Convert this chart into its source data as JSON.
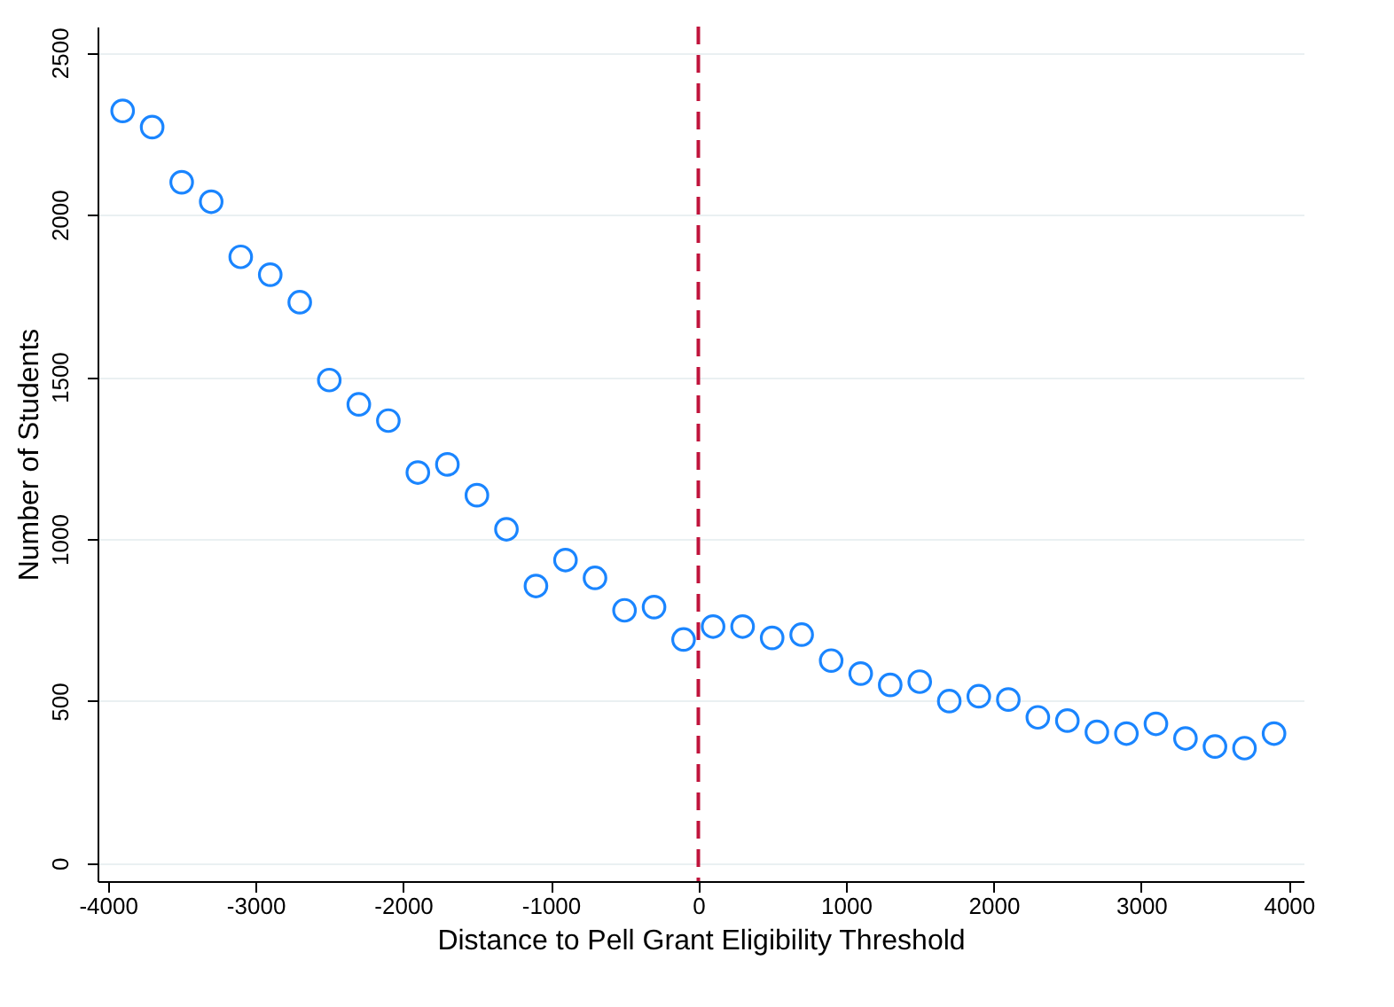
{
  "chart_data": {
    "type": "scatter",
    "xlabel": "Distance to Pell Grant Eligibility Threshold",
    "ylabel": "Number of Students",
    "x": [
      -3900,
      -3700,
      -3500,
      -3300,
      -3100,
      -2900,
      -2700,
      -2500,
      -2300,
      -2100,
      -1900,
      -1700,
      -1500,
      -1300,
      -1100,
      -900,
      -700,
      -500,
      -300,
      -100,
      100,
      300,
      500,
      700,
      900,
      1100,
      1300,
      1500,
      1700,
      1900,
      2100,
      2300,
      2500,
      2700,
      2900,
      3100,
      3300,
      3500,
      3700,
      3900
    ],
    "series": [
      {
        "color": "#1a85ff",
        "values": [
          2320,
          2270,
          2100,
          2040,
          1870,
          1815,
          1730,
          1490,
          1415,
          1365,
          1205,
          1230,
          1135,
          1030,
          855,
          935,
          880,
          780,
          790,
          690,
          730,
          730,
          695,
          705,
          625,
          585,
          550,
          560,
          500,
          515,
          505,
          450,
          440,
          405,
          400,
          430,
          385,
          360,
          355,
          400
        ]
      }
    ],
    "xlim": [
      -4070,
      4100
    ],
    "ylim": [
      -55,
      2580
    ],
    "xticks": [
      -4000,
      -3000,
      -2000,
      -1000,
      0,
      1000,
      2000,
      3000,
      4000
    ],
    "yticks": [
      0,
      500,
      1000,
      1500,
      2000,
      2500
    ],
    "grid": "y",
    "marker": "circle",
    "ref_lines": [
      {
        "axis": "x",
        "value": 0,
        "color": "#c0143c",
        "line_style": "dashed"
      }
    ]
  }
}
